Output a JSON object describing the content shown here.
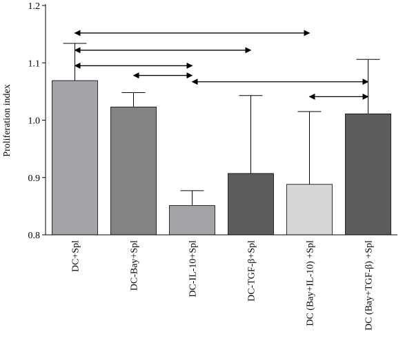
{
  "chart_data": {
    "type": "bar",
    "title": "",
    "xlabel": "",
    "ylabel": "Proliferation index",
    "ylim": [
      0.8,
      1.2
    ],
    "yticks": [
      "0.8",
      "0.9",
      "1.0",
      "1.1",
      "1.2"
    ],
    "grid": false,
    "categories": [
      "DC+Spl",
      "DC-Bay+Spl",
      "DC-IL-10+Spl",
      "DC-TGF-β+Spl",
      "DC (Bay+IL-10) +Spl",
      "DC (Bay+TGF-β) +Spl"
    ],
    "values": [
      1.069,
      1.023,
      0.851,
      0.907,
      0.888,
      1.011
    ],
    "error_upper": [
      1.134,
      1.048,
      0.877,
      1.043,
      1.015,
      1.106
    ],
    "bar_colors": [
      "#a3a4a8",
      "#828383",
      "#a3a4a8",
      "#5b5c5e",
      "#d4d5d5",
      "#5b5c5e"
    ],
    "comparisons": [
      {
        "from": 0,
        "to": 4,
        "y": 1.152
      },
      {
        "from": 0,
        "to": 3,
        "y": 1.122
      },
      {
        "from": 0,
        "to": 2,
        "y": 1.095
      },
      {
        "from": 1,
        "to": 2,
        "y": 1.078
      },
      {
        "from": 2,
        "to": 5,
        "y": 1.067
      },
      {
        "from": 4,
        "to": 5,
        "y": 1.041
      }
    ]
  }
}
